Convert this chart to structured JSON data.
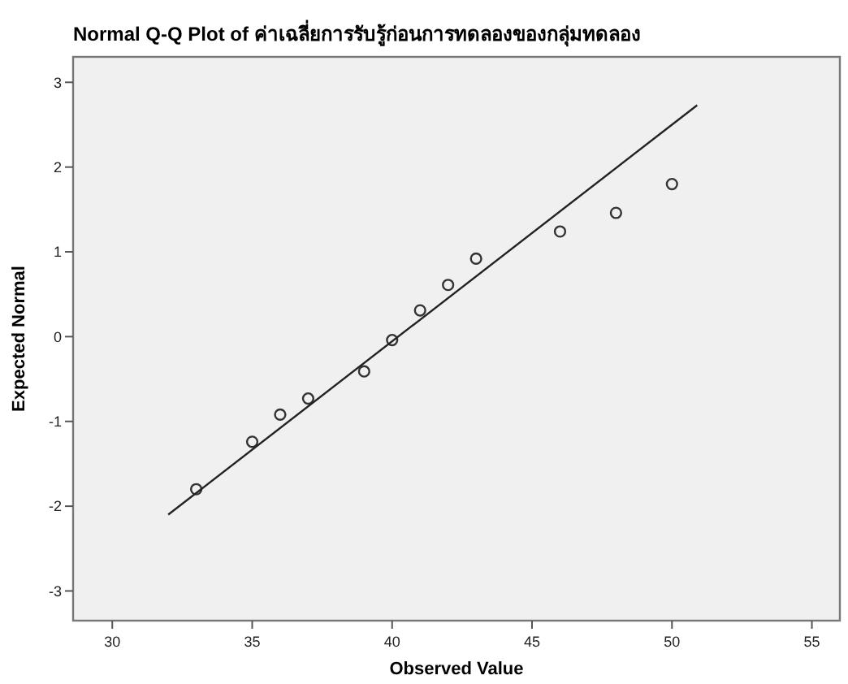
{
  "chart_data": {
    "type": "scatter",
    "title": "Normal Q-Q Plot of ค่าเฉลี่ยการรับรู้ก่อนการทดลองของกลุ่มทดลอง",
    "xlabel": "Observed Value",
    "ylabel": "Expected Normal",
    "xlim": [
      28.6,
      56
    ],
    "xticks": [
      30,
      35,
      40,
      45,
      50,
      55
    ],
    "ylim": [
      -3.35,
      3.3
    ],
    "yticks": [
      -3,
      -2,
      -1,
      0,
      1,
      2,
      3
    ],
    "grid": false,
    "series": [
      {
        "marker": "circle",
        "color": "#333333",
        "x": [
          33,
          35,
          36,
          37,
          39,
          40,
          41,
          42,
          43,
          46,
          48,
          50
        ],
        "values": [
          -1.8,
          -1.24,
          -0.92,
          -0.73,
          -0.41,
          -0.04,
          0.31,
          0.61,
          0.92,
          1.24,
          1.46,
          1.8
        ]
      },
      {
        "type": "line",
        "marker": "none",
        "color": "#222222",
        "x": [
          32,
          50.9
        ],
        "values": [
          -2.1,
          2.73
        ]
      }
    ]
  }
}
